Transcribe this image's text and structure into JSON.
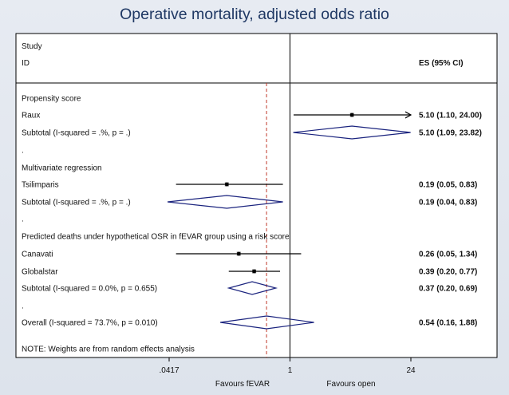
{
  "chart_data": {
    "type": "forest",
    "title": "Operative mortality, adjusted odds ratio",
    "header": {
      "study": "Study",
      "id": "ID",
      "es": "ES (95% CI)"
    },
    "scale": "log",
    "xlim": [
      0.0417,
      24
    ],
    "ticks": [
      {
        "value": 0.0417,
        "label": ".0417"
      },
      {
        "value": 1,
        "label": "1"
      },
      {
        "value": 24,
        "label": "24"
      }
    ],
    "reference_line": 1,
    "overall_line": 0.54,
    "xlabel_left": "Favours fEVAR",
    "xlabel_right": "Favours open",
    "rows": [
      {
        "kind": "group",
        "label": "Propensity score"
      },
      {
        "kind": "study",
        "label": "Raux",
        "es": 5.1,
        "lo": 1.1,
        "hi": 24.0,
        "arrow": true,
        "es_text": "5.10 (1.10, 24.00)"
      },
      {
        "kind": "subtotal",
        "label": "Subtotal  (I-squared = .%, p = .)",
        "es": 5.1,
        "lo": 1.09,
        "hi": 23.82,
        "es_text": "5.10 (1.09, 23.82)"
      },
      {
        "kind": "spacer",
        "label": "."
      },
      {
        "kind": "group",
        "label": "Multivariate regression"
      },
      {
        "kind": "study",
        "label": "Tsilimparis",
        "es": 0.19,
        "lo": 0.05,
        "hi": 0.83,
        "es_text": "0.19 (0.05, 0.83)"
      },
      {
        "kind": "subtotal",
        "label": "Subtotal  (I-squared = .%, p = .)",
        "es": 0.19,
        "lo": 0.04,
        "hi": 0.83,
        "es_text": "0.19 (0.04, 0.83)"
      },
      {
        "kind": "spacer",
        "label": "."
      },
      {
        "kind": "group",
        "label": "Predicted deaths under hypothetical OSR in fEVAR group using a risk score"
      },
      {
        "kind": "study",
        "label": "Canavati",
        "es": 0.26,
        "lo": 0.05,
        "hi": 1.34,
        "es_text": "0.26 (0.05, 1.34)"
      },
      {
        "kind": "study",
        "label": "Globalstar",
        "es": 0.39,
        "lo": 0.2,
        "hi": 0.77,
        "es_text": "0.39 (0.20, 0.77)"
      },
      {
        "kind": "subtotal",
        "label": "Subtotal  (I-squared = 0.0%, p = 0.655)",
        "es": 0.37,
        "lo": 0.2,
        "hi": 0.69,
        "es_text": "0.37 (0.20, 0.69)"
      },
      {
        "kind": "spacer",
        "label": "."
      },
      {
        "kind": "overall",
        "label": "Overall  (I-squared = 73.7%, p = 0.010)",
        "es": 0.54,
        "lo": 0.16,
        "hi": 1.88,
        "es_text": "0.54 (0.16, 1.88)"
      },
      {
        "kind": "note",
        "label": "NOTE: Weights are from random effects analysis"
      }
    ],
    "colors": {
      "frame": "#000000",
      "diamond": "#1a237e",
      "ref_line": "#222222",
      "overall_line": "#c0392b",
      "text": "#111111",
      "title": "#1f3864"
    }
  }
}
